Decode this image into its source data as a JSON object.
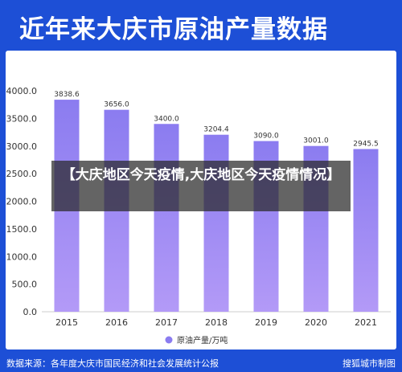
{
  "header": {
    "title": "近年来大庆市原油产量数据"
  },
  "footer": {
    "source": "数据来源：各年度大庆市国民经济和社会发展统计公报",
    "credit": "搜狐城市制图"
  },
  "overlay": {
    "text": "【大庆地区今天疫情,大庆地区今天疫情情况】"
  },
  "colors": {
    "background": "#1d4fd6",
    "bar_top": "#8b7cf0",
    "bar_bottom": "#b39af7",
    "legend_dot": "#8b7cf0"
  },
  "chart_data": {
    "type": "bar",
    "categories": [
      "2015",
      "2016",
      "2017",
      "2018",
      "2019",
      "2020",
      "2021"
    ],
    "series": [
      {
        "name": "原油产量/万吨",
        "values": [
          3838.6,
          3656.0,
          3400.0,
          3204.4,
          3090.0,
          3001.0,
          2945.5
        ]
      }
    ],
    "value_labels": [
      "3838.6",
      "3656.0",
      "3400.0",
      "3204.4",
      "3090.0",
      "3001.0",
      "2945.5"
    ],
    "yticks": [
      "0.0",
      "500.0",
      "1000.0",
      "1500.0",
      "2000.0",
      "2500.0",
      "3000.0",
      "3500.0",
      "4000.0"
    ],
    "ylim": [
      0,
      4000
    ],
    "grid": false,
    "legend_position": "bottom-center"
  }
}
